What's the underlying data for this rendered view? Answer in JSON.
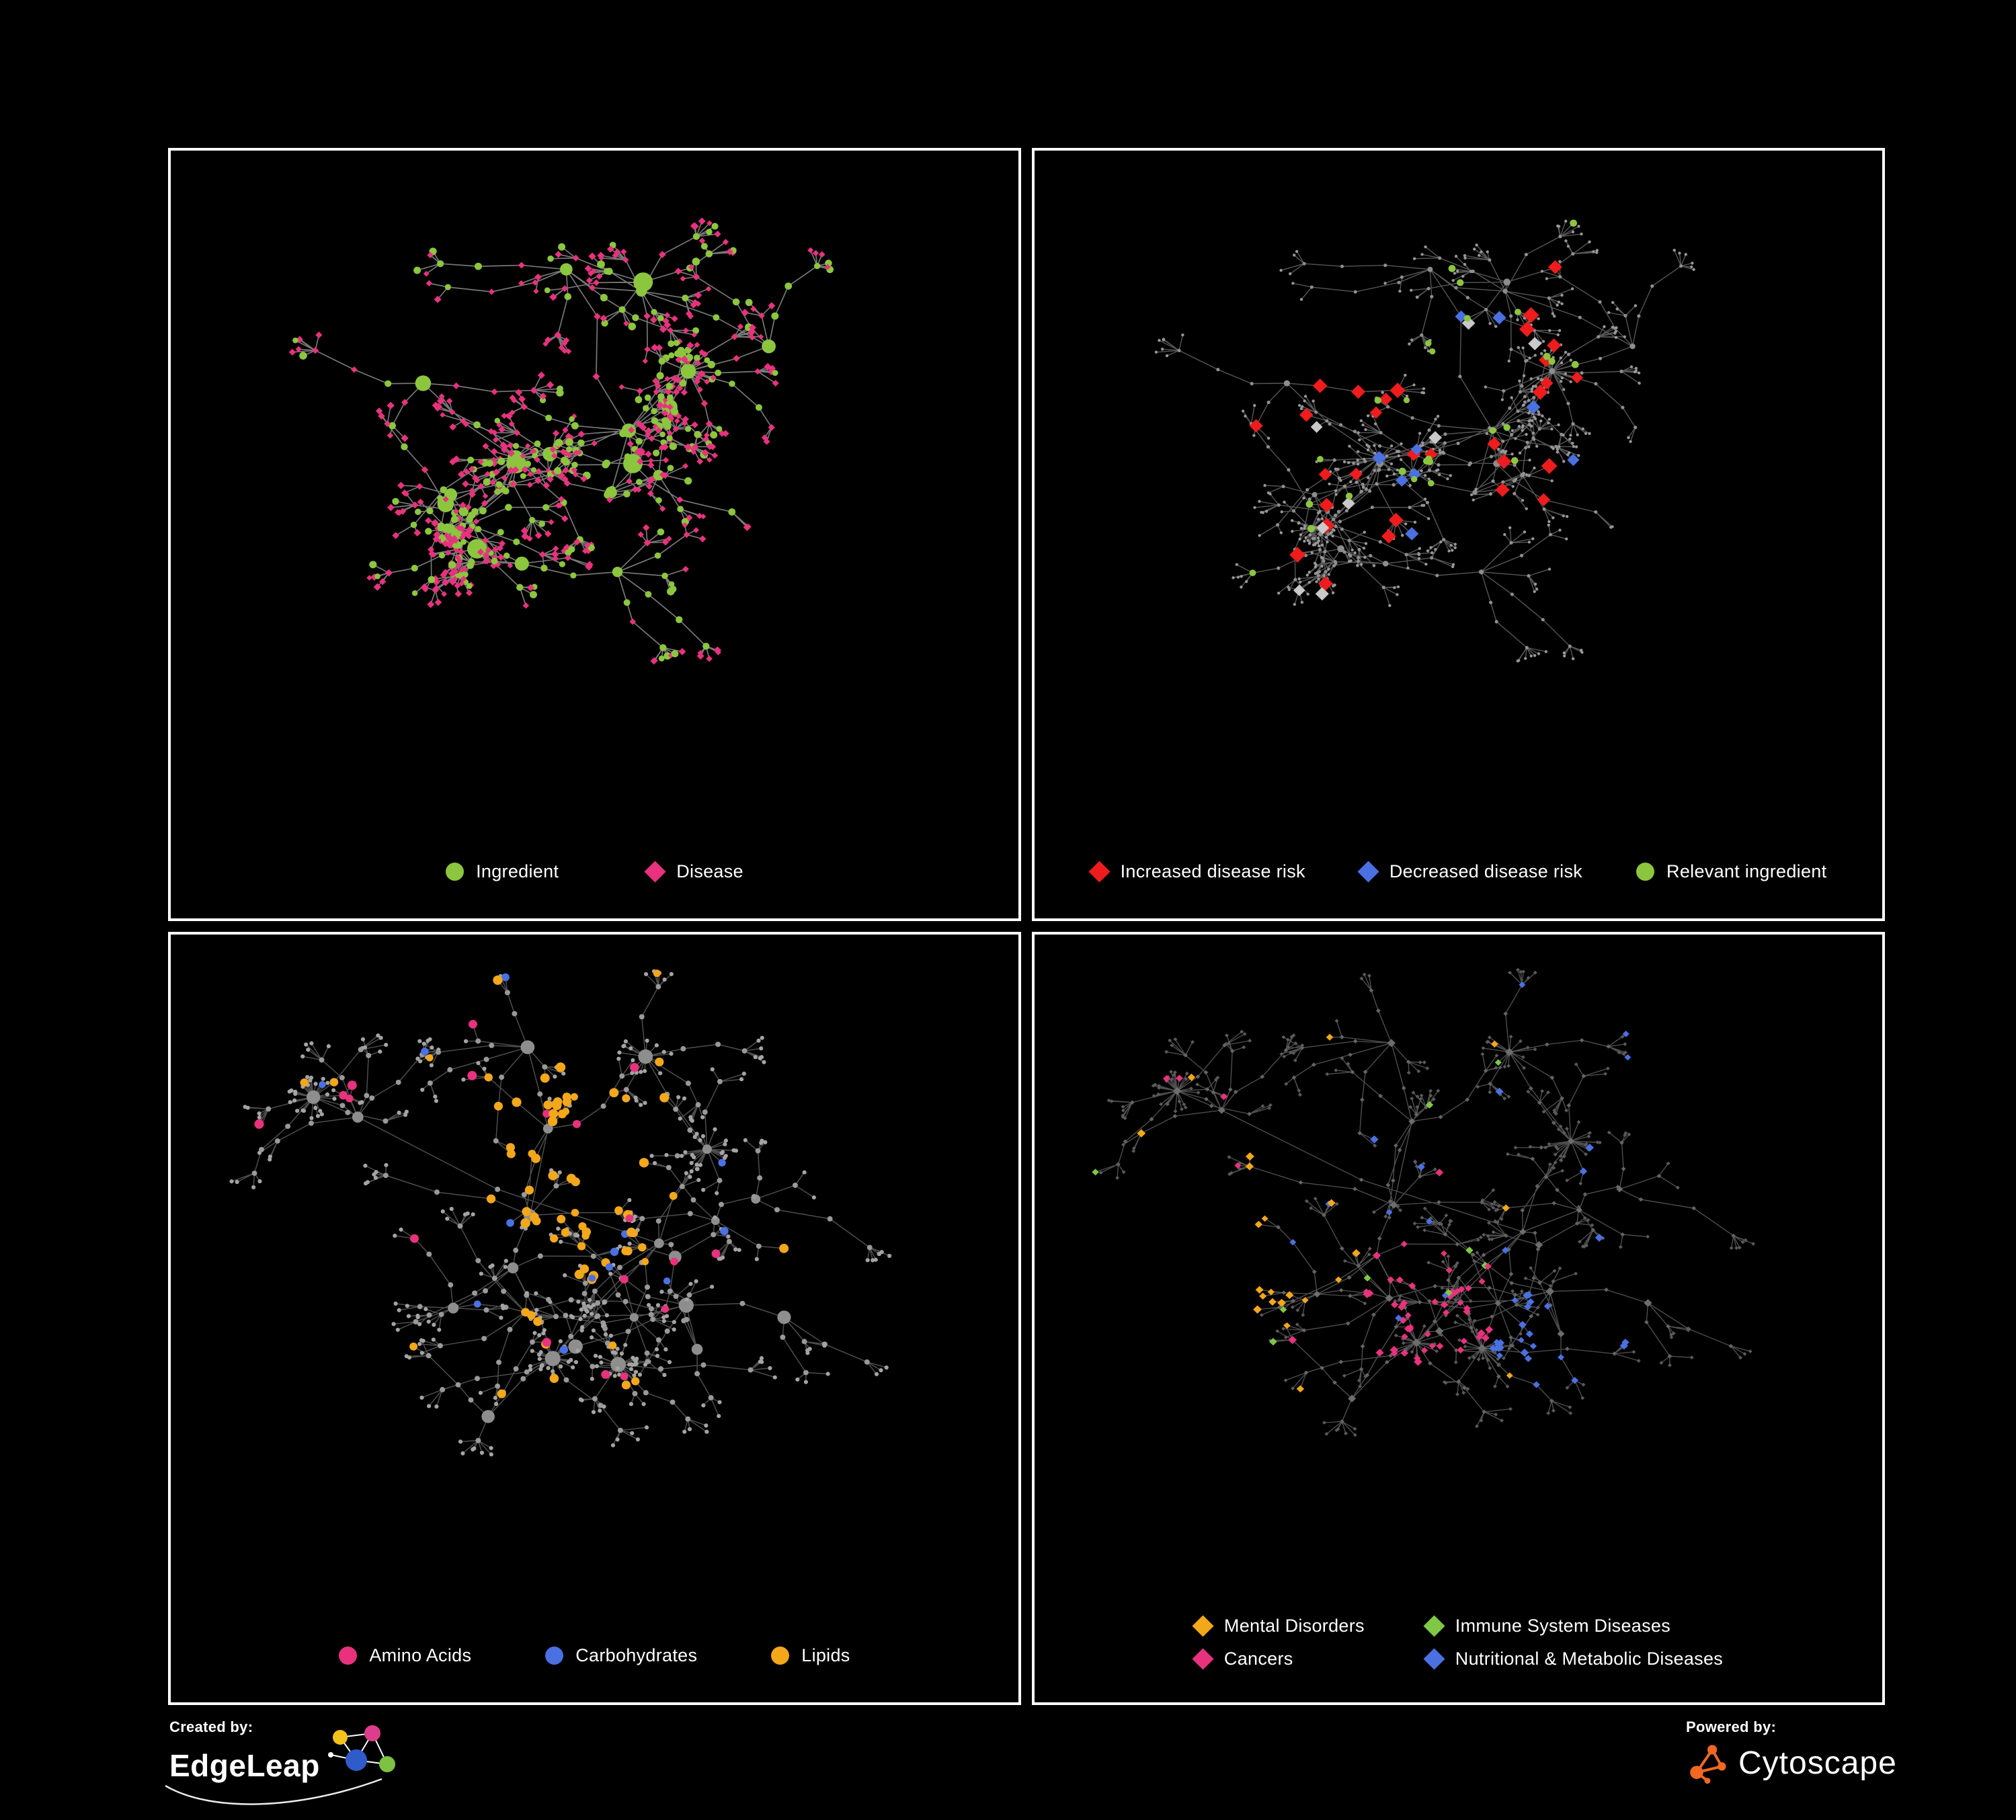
{
  "panels": [
    {
      "id": "ingredient-disease",
      "legend": [
        {
          "label": "Ingredient",
          "shape": "circle",
          "color": "#8CC63E"
        },
        {
          "label": "Disease",
          "shape": "diamond",
          "color": "#E8327D"
        }
      ]
    },
    {
      "id": "disease-risk",
      "legend": [
        {
          "label": "Increased disease risk",
          "shape": "diamond",
          "color": "#EE1C1C"
        },
        {
          "label": "Decreased disease risk",
          "shape": "diamond",
          "color": "#4A70E2"
        },
        {
          "label": "Relevant ingredient",
          "shape": "circle",
          "color": "#8CC63E"
        }
      ]
    },
    {
      "id": "nutrient-classes",
      "legend": [
        {
          "label": "Amino Acids",
          "shape": "circle",
          "color": "#E8327D"
        },
        {
          "label": "Carbohydrates",
          "shape": "circle",
          "color": "#4A70E2"
        },
        {
          "label": "Lipids",
          "shape": "circle",
          "color": "#F3A71B"
        }
      ]
    },
    {
      "id": "disease-categories",
      "legend": [
        {
          "label": "Mental Disorders",
          "shape": "diamond",
          "color": "#F3A71B"
        },
        {
          "label": "Immune System Diseases",
          "shape": "diamond",
          "color": "#7EC845"
        },
        {
          "label": "Cancers",
          "shape": "diamond",
          "color": "#E8327D"
        },
        {
          "label": "Nutritional & Metabolic Diseases",
          "shape": "diamond",
          "color": "#4A70E2"
        }
      ]
    }
  ],
  "footer": {
    "created_by": "Created by:",
    "brand": "EdgeLeap",
    "powered_by": "Powered by:",
    "engine": "Cytoscape",
    "edgeleap_colors": {
      "yellow": "#F5C21B",
      "pink": "#DD3D8C",
      "blue": "#2F5BCB",
      "green": "#7DC242"
    },
    "cytoscape_color": "#F26722"
  }
}
